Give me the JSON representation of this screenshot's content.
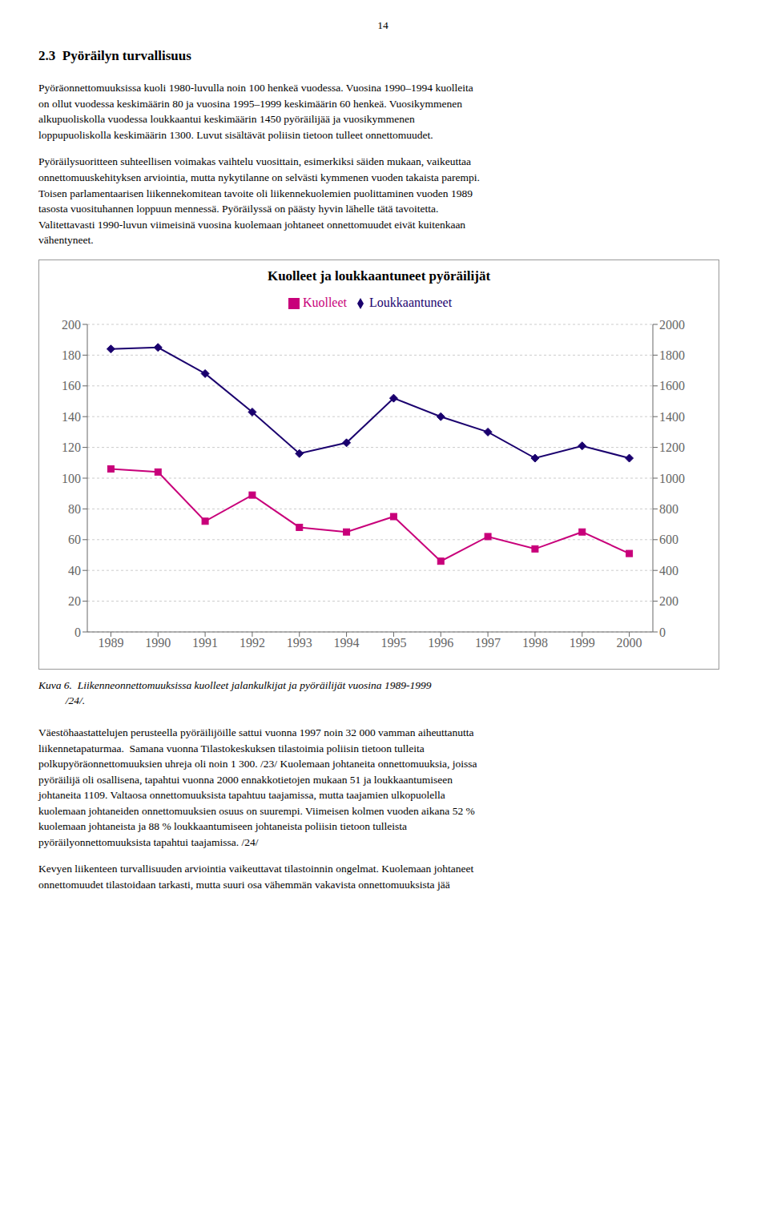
{
  "chart_data": {
    "type": "line",
    "title": "Kuolleet ja loukkaantuneet pyöräilijät",
    "x": [
      1989,
      1990,
      1991,
      1992,
      1993,
      1994,
      1995,
      1996,
      1997,
      1998,
      1999,
      2000
    ],
    "xlim": [
      1988.5,
      2000.5
    ],
    "xticks": [
      1989,
      1990,
      1991,
      1992,
      1993,
      1994,
      1995,
      1996,
      1997,
      1998,
      1999,
      2000
    ],
    "ylim": [
      0,
      200
    ],
    "yticks": [
      0,
      20,
      40,
      60,
      80,
      100,
      120,
      140,
      160,
      180,
      200
    ],
    "y2lim": [
      0,
      2000
    ],
    "y2ticks": [
      0,
      200,
      400,
      600,
      800,
      1000,
      1200,
      1400,
      1600,
      1800,
      2000
    ],
    "grid": true,
    "legend": "top",
    "series": [
      {
        "name": "Kuolleet",
        "color": "#c8007a",
        "marker": "square",
        "values": [
          106,
          104,
          72,
          89,
          68,
          65,
          75,
          46,
          62,
          54,
          65,
          51
        ]
      },
      {
        "name": "Loukkaantuneet",
        "color": "#1a006e",
        "marker": "diamond",
        "axis": "y2",
        "values": [
          1840,
          1850,
          1680,
          1430,
          1160,
          1230,
          1520,
          1400,
          1300,
          1130,
          1210,
          1130
        ]
      }
    ],
    "annotations": [
      "14",
      "2.3  Pyöräilyn turvallisuus",
      "Pyöräonnettomuuksissa kuoli 1980-luvulla noin 100 henkeä vuodessa. Vuosina 1990–1994 kuolleita\non ollut vuodessa keskimäärin 80 ja vuosina 1995–1999 keskimäärin 60 henkeä. Vuosikymmenen\nalkupuoliskolla vuodessa loukkaantui keskimäärin 1450 pyöräilijää ja vuosikymmenen\nloppupuoliskolla keskimäärin 1300. Luvut sisältävät poliisin tietoon tulleet onnettomuudet.",
      "Pyöräilysuoritteen suhteellisen voimakas vaihtelu vuosittain, esimerkiksi säiden mukaan, vaikeuttaa\nonnettomuuskehityksen arviointia, mutta nykytilanne on selvästi kymmenen vuoden takaista parempi.\nToisen parlamentaarisen liikennekomitean tavoite oli liikennekuolemien puolittaminen vuoden 1989\ntasosta vuosituhannen loppuun mennessä. Pyöräilyssä on päästy hyvin lähelle tätä tavoitetta.\nValitettavasti 1990-luvun viimeisinä vuosina kuolemaan johtaneet onnettomuudet eivät kuitenkaan\nvähentyneet.",
      "Kuva 6.  Liikenneonnettomuuksissa kuolleet jalankulkijat ja pyöräilijät vuosina 1989-1999\n          /24/.",
      "Väestöhaastattelujen perusteella pyöräilijöille sattui vuonna 1997 noin 32 000 vamman aiheuttanutta\nliikennetapaturmaa.  Samana vuonna Tilastokeskuksen tilastoimia poliisin tietoon tulleita\npolkupyöräonnettomuuksien uhreja oli noin 1 300. /23/ Kuolemaan johtaneita onnettomuuksia, joissa\npyöräilijä oli osallisena, tapahtui vuonna 2000 ennakkotietojen mukaan 51 ja loukkaantumiseen\njohtaneita 1109. Valtaosa onnettomuuksista tapahtuu taajamissa, mutta taajamien ulkopuolella\nkuolemaan johtaneiden onnettomuuksien osuus on suurempi. Viimeisen kolmen vuoden aikana 52 %\nkuolemaan johtaneista ja 88 % loukkaantumiseen johtaneista poliisin tietoon tulleista\npyöräilyonnettomuuksista tapahtui taajamissa. /24/",
      "Kevyen liikenteen turvallisuuden arviointia vaikeuttavat tilastoinnin ongelmat. Kuolemaan johtaneet\nonnettomuudet tilastoidaan tarkasti, mutta suuri osa vähemmän vakavista onnettomuuksista jää"
    ]
  }
}
